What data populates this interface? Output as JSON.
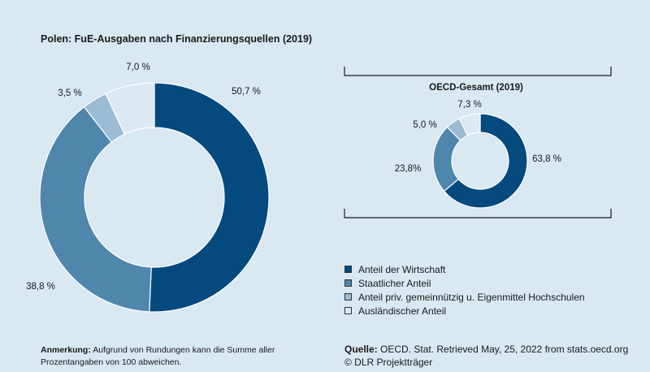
{
  "colors": {
    "background": "#d9e8f1",
    "wirtschaft": "#044a7f",
    "staat": "#4f86ac",
    "gemeinnuetzig": "#9bbcd3",
    "ausland": "#dde8f0"
  },
  "title": "Polen: FuE-Ausgaben nach Finanzierungsquellen (2019)",
  "legend": [
    {
      "label": "Anteil der Wirtschaft",
      "color": "#044a7f"
    },
    {
      "label": "Staatlicher Anteil",
      "color": "#4f86ac"
    },
    {
      "label": "Anteil priv. gemeinnützig u. Eigenmittel Hochschulen",
      "color": "#9bbcd3"
    },
    {
      "label": "Ausländischer Anteil",
      "color": "#dde8f0"
    }
  ],
  "note": {
    "label": "Anmerkung:",
    "text": "Aufgrund von Rundungen kann die Summe aller Prozentangaben von 100 abweichen."
  },
  "source": {
    "label": "Quelle:",
    "text": "OECD. Stat. Retrieved May, 25, 2022 from stats.oecd.org",
    "copyright": "© DLR Projektträger"
  },
  "chart_data": [
    {
      "type": "pie",
      "title": "Polen: FuE-Ausgaben nach Finanzierungsquellen (2019)",
      "categories": [
        "Anteil der Wirtschaft",
        "Staatlicher Anteil",
        "Anteil priv. gemeinnützig u. Eigenmittel Hochschulen",
        "Ausländischer Anteil"
      ],
      "values": [
        50.7,
        38.8,
        3.5,
        7.0
      ],
      "labels": [
        "50,7 %",
        "38,8 %",
        "3,5 %",
        "7,0 %"
      ]
    },
    {
      "type": "pie",
      "title": "OECD-Gesamt (2019)",
      "categories": [
        "Anteil der Wirtschaft",
        "Staatlicher Anteil",
        "Anteil priv. gemeinnützig u. Eigenmittel Hochschulen",
        "Ausländischer Anteil"
      ],
      "values": [
        63.8,
        23.8,
        5.0,
        7.3
      ],
      "labels": [
        "63,8 %",
        "23,8%",
        "5,0 %",
        "7,3 %"
      ]
    }
  ]
}
